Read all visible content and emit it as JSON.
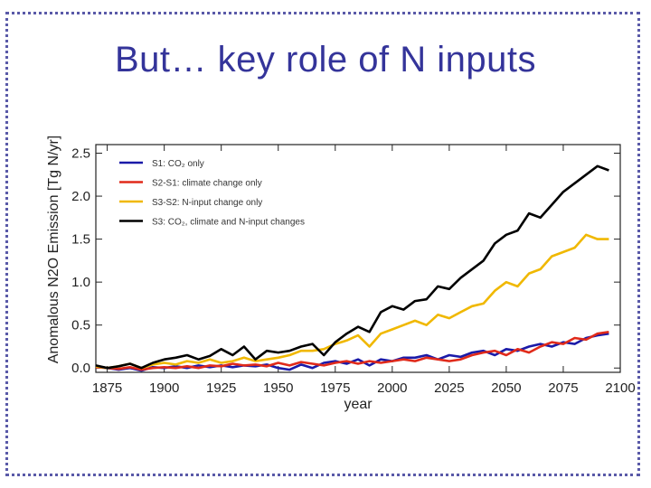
{
  "slide": {
    "title": "But… key role of N inputs"
  },
  "chart_data": {
    "type": "line",
    "title": "",
    "xlabel": "year",
    "ylabel": "Anomalous N2O Emission [Tg N/yr]",
    "xlim": [
      1870,
      2100
    ],
    "ylim": [
      -0.05,
      2.6
    ],
    "xticks": [
      1875,
      1900,
      1925,
      1950,
      1975,
      2000,
      2025,
      2050,
      2075,
      2100
    ],
    "yticks": [
      0.0,
      0.5,
      1.0,
      1.5,
      2.0,
      2.5
    ],
    "ytick_labels": [
      "0.0",
      "0.5",
      "1.0",
      "1.5",
      "2.0",
      "2.5"
    ],
    "legend_position": "top-left",
    "series": [
      {
        "name": "S1: CO₂ only",
        "color": "#1a1aa8",
        "x": [
          1870,
          1875,
          1880,
          1885,
          1890,
          1895,
          1900,
          1905,
          1910,
          1915,
          1920,
          1925,
          1930,
          1935,
          1940,
          1945,
          1950,
          1955,
          1960,
          1965,
          1970,
          1975,
          1980,
          1985,
          1990,
          1995,
          2000,
          2005,
          2010,
          2015,
          2020,
          2025,
          2030,
          2035,
          2040,
          2045,
          2050,
          2055,
          2060,
          2065,
          2070,
          2075,
          2080,
          2085,
          2090,
          2095
        ],
        "y": [
          0.02,
          0.0,
          -0.02,
          0.0,
          -0.03,
          0.01,
          0.0,
          0.02,
          0.0,
          0.03,
          0.01,
          0.03,
          0.01,
          0.03,
          0.02,
          0.04,
          0.0,
          -0.02,
          0.04,
          0.0,
          0.06,
          0.08,
          0.05,
          0.1,
          0.03,
          0.1,
          0.08,
          0.12,
          0.12,
          0.15,
          0.1,
          0.15,
          0.13,
          0.18,
          0.2,
          0.15,
          0.22,
          0.2,
          0.25,
          0.28,
          0.25,
          0.3,
          0.28,
          0.35,
          0.38,
          0.4
        ]
      },
      {
        "name": "S2-S1: climate change only",
        "color": "#e02a1a",
        "x": [
          1870,
          1875,
          1880,
          1885,
          1890,
          1895,
          1900,
          1905,
          1910,
          1915,
          1920,
          1925,
          1930,
          1935,
          1940,
          1945,
          1950,
          1955,
          1960,
          1965,
          1970,
          1975,
          1980,
          1985,
          1990,
          1995,
          2000,
          2005,
          2010,
          2015,
          2020,
          2025,
          2030,
          2035,
          2040,
          2045,
          2050,
          2055,
          2060,
          2065,
          2070,
          2075,
          2080,
          2085,
          2090,
          2095
        ],
        "y": [
          0.01,
          0.0,
          -0.01,
          0.01,
          -0.02,
          0.0,
          0.01,
          0.0,
          0.02,
          0.0,
          0.03,
          0.02,
          0.05,
          0.03,
          0.04,
          0.02,
          0.06,
          0.03,
          0.07,
          0.05,
          0.03,
          0.06,
          0.08,
          0.05,
          0.08,
          0.06,
          0.08,
          0.1,
          0.08,
          0.12,
          0.1,
          0.08,
          0.1,
          0.15,
          0.18,
          0.2,
          0.15,
          0.22,
          0.18,
          0.25,
          0.3,
          0.28,
          0.35,
          0.33,
          0.4,
          0.42
        ]
      },
      {
        "name": "S3-S2: N-input change only",
        "color": "#f0b800",
        "x": [
          1870,
          1875,
          1880,
          1885,
          1890,
          1895,
          1900,
          1905,
          1910,
          1915,
          1920,
          1925,
          1930,
          1935,
          1940,
          1945,
          1950,
          1955,
          1960,
          1965,
          1970,
          1975,
          1980,
          1985,
          1990,
          1995,
          2000,
          2005,
          2010,
          2015,
          2020,
          2025,
          2030,
          2035,
          2040,
          2045,
          2050,
          2055,
          2060,
          2065,
          2070,
          2075,
          2080,
          2085,
          2090,
          2095
        ],
        "y": [
          0.02,
          0.0,
          0.02,
          0.05,
          0.0,
          0.04,
          0.06,
          0.04,
          0.08,
          0.06,
          0.1,
          0.06,
          0.08,
          0.12,
          0.08,
          0.1,
          0.12,
          0.15,
          0.2,
          0.2,
          0.22,
          0.28,
          0.32,
          0.38,
          0.25,
          0.4,
          0.45,
          0.5,
          0.55,
          0.5,
          0.62,
          0.58,
          0.65,
          0.72,
          0.75,
          0.9,
          1.0,
          0.95,
          1.1,
          1.15,
          1.3,
          1.35,
          1.4,
          1.55,
          1.5,
          1.5
        ]
      },
      {
        "name": "S3: CO₂, climate and N-input changes",
        "color": "#000000",
        "x": [
          1870,
          1875,
          1880,
          1885,
          1890,
          1895,
          1900,
          1905,
          1910,
          1915,
          1920,
          1925,
          1930,
          1935,
          1940,
          1945,
          1950,
          1955,
          1960,
          1965,
          1970,
          1975,
          1980,
          1985,
          1990,
          1995,
          2000,
          2005,
          2010,
          2015,
          2020,
          2025,
          2030,
          2035,
          2040,
          2045,
          2050,
          2055,
          2060,
          2065,
          2070,
          2075,
          2080,
          2085,
          2090,
          2095
        ],
        "y": [
          0.03,
          0.0,
          0.02,
          0.05,
          0.0,
          0.06,
          0.1,
          0.12,
          0.15,
          0.1,
          0.14,
          0.22,
          0.15,
          0.25,
          0.1,
          0.2,
          0.18,
          0.2,
          0.25,
          0.28,
          0.15,
          0.3,
          0.4,
          0.48,
          0.42,
          0.65,
          0.72,
          0.68,
          0.78,
          0.8,
          0.95,
          0.92,
          1.05,
          1.15,
          1.25,
          1.45,
          1.55,
          1.6,
          1.8,
          1.75,
          1.9,
          2.05,
          2.15,
          2.25,
          2.35,
          2.3
        ]
      }
    ]
  }
}
